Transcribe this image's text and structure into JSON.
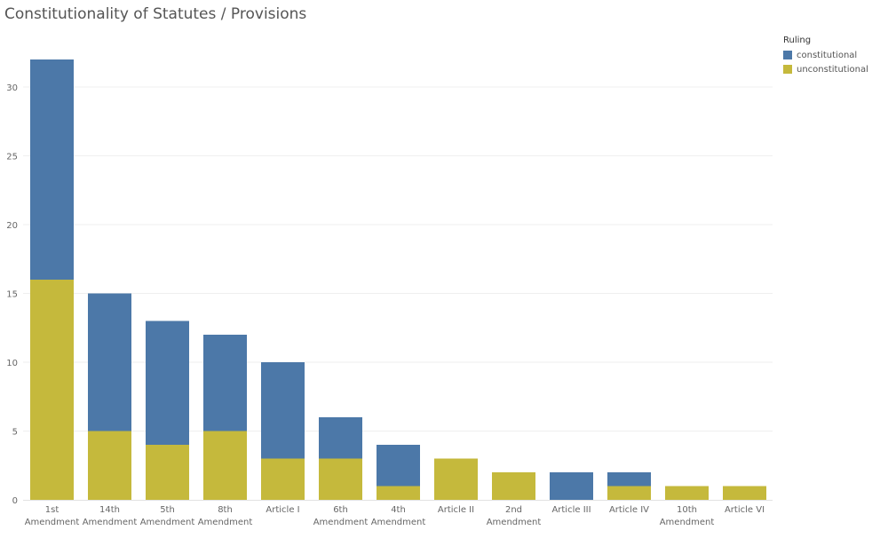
{
  "chart_data": {
    "type": "bar",
    "stacked": true,
    "title": "Constitutionality of Statutes / Provisions",
    "xlabel": "",
    "ylabel": "",
    "ylim": [
      0,
      33
    ],
    "yticks": [
      0,
      5,
      10,
      15,
      20,
      25,
      30
    ],
    "grid": true,
    "categories": [
      [
        "1st",
        "Amendment"
      ],
      [
        "14th",
        "Amendment"
      ],
      [
        "5th",
        "Amendment"
      ],
      [
        "8th",
        "Amendment"
      ],
      [
        "Article I"
      ],
      [
        "6th",
        "Amendment"
      ],
      [
        "4th",
        "Amendment"
      ],
      [
        "Article II"
      ],
      [
        "2nd",
        "Amendment"
      ],
      [
        "Article III"
      ],
      [
        "Article IV"
      ],
      [
        "10th",
        "Amendment"
      ],
      [
        "Article VI"
      ]
    ],
    "series": [
      {
        "name": "unconstitutional",
        "color": "#c5b93c",
        "values": [
          16,
          5,
          4,
          5,
          3,
          3,
          1,
          3,
          2,
          0,
          1,
          1,
          1
        ]
      },
      {
        "name": "constitutional",
        "color": "#4c78a8",
        "values": [
          16,
          10,
          9,
          7,
          7,
          3,
          3,
          0,
          0,
          2,
          1,
          0,
          0
        ]
      }
    ],
    "legend": {
      "title": "Ruling",
      "position": "top-right",
      "items": [
        {
          "label": "constitutional",
          "color": "#4c78a8"
        },
        {
          "label": "unconstitutional",
          "color": "#c5b93c"
        }
      ]
    }
  }
}
